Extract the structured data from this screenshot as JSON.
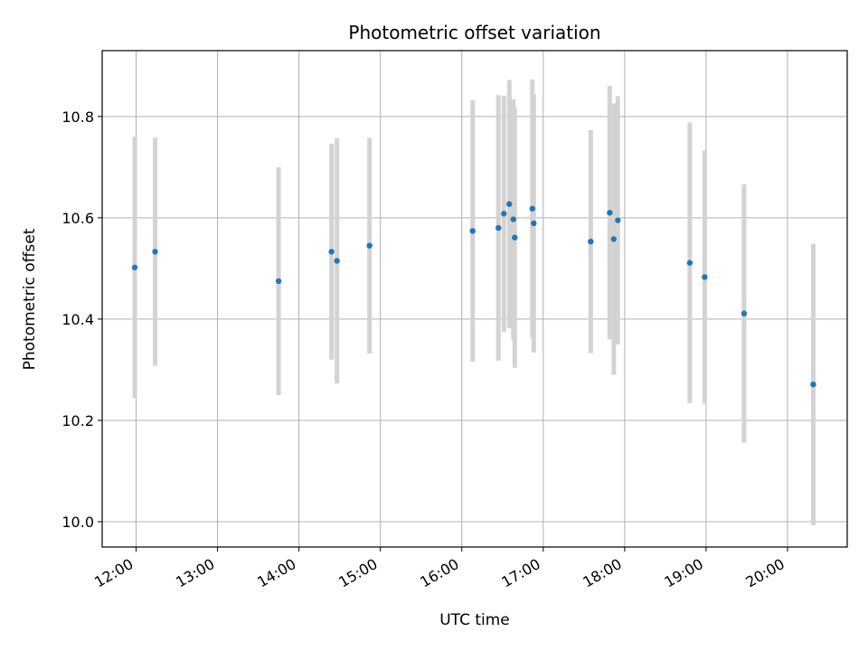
{
  "chart_data": {
    "type": "scatter",
    "title": "Photometric offset variation",
    "xlabel": "UTC time",
    "ylabel": "Photometric offset",
    "x_ticks": [
      "12:00",
      "13:00",
      "14:00",
      "15:00",
      "16:00",
      "17:00",
      "18:00",
      "19:00",
      "20:00"
    ],
    "y_ticks": [
      "10.0",
      "10.2",
      "10.4",
      "10.6",
      "10.8"
    ],
    "xlim": [
      "11:35",
      "20:44"
    ],
    "ylim": [
      9.95,
      10.93
    ],
    "grid": true,
    "point_color": "#1f77b4",
    "errorbar_color": "#d3d3d3",
    "series": [
      {
        "points": [
          {
            "time": "11:59",
            "y": 10.502,
            "err": 0.258
          },
          {
            "time": "12:14",
            "y": 10.533,
            "err": 0.225
          },
          {
            "time": "13:45",
            "y": 10.475,
            "err": 0.225
          },
          {
            "time": "14:24",
            "y": 10.533,
            "err": 0.213
          },
          {
            "time": "14:28",
            "y": 10.515,
            "err": 0.242
          },
          {
            "time": "14:52",
            "y": 10.545,
            "err": 0.213
          },
          {
            "time": "16:08",
            "y": 10.574,
            "err": 0.258
          },
          {
            "time": "16:27",
            "y": 10.58,
            "err": 0.262
          },
          {
            "time": "16:31",
            "y": 10.608,
            "err": 0.233
          },
          {
            "time": "16:35",
            "y": 10.627,
            "err": 0.245
          },
          {
            "time": "16:38",
            "y": 10.597,
            "err": 0.237
          },
          {
            "time": "16:39",
            "y": 10.561,
            "err": 0.257
          },
          {
            "time": "16:52",
            "y": 10.618,
            "err": 0.255
          },
          {
            "time": "16:53",
            "y": 10.589,
            "err": 0.255
          },
          {
            "time": "17:35",
            "y": 10.553,
            "err": 0.22
          },
          {
            "time": "17:49",
            "y": 10.61,
            "err": 0.25
          },
          {
            "time": "17:52",
            "y": 10.558,
            "err": 0.268
          },
          {
            "time": "17:55",
            "y": 10.595,
            "err": 0.245
          },
          {
            "time": "18:48",
            "y": 10.511,
            "err": 0.277
          },
          {
            "time": "18:59",
            "y": 10.483,
            "err": 0.25
          },
          {
            "time": "19:28",
            "y": 10.411,
            "err": 0.255
          },
          {
            "time": "20:19",
            "y": 10.271,
            "err": 0.278
          }
        ]
      }
    ]
  }
}
